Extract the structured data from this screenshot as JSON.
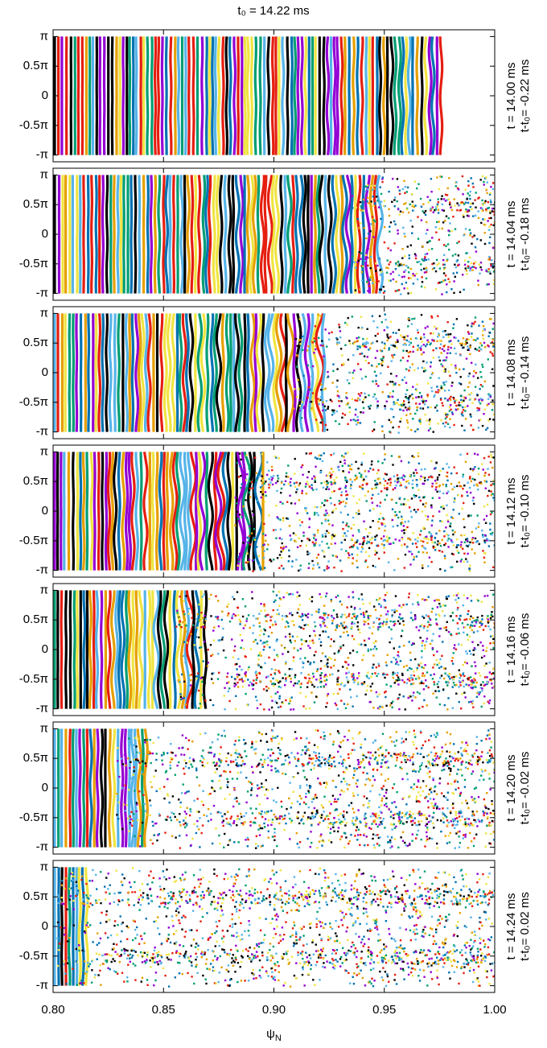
{
  "chart_data": [
    {
      "type": "scatter",
      "title": "t₀ = 14.22 ms",
      "time_label": "t   = 14.00 ms",
      "offset_label": "t-t₀= -0.22 ms",
      "xlim": [
        0.8,
        1.0
      ],
      "ylim": [
        -3.5,
        3.5
      ],
      "yticks": [
        {
          "value": 3.14159,
          "label": "π"
        },
        {
          "value": 1.5708,
          "label": "0.5π"
        },
        0,
        {
          "value": -1.5708,
          "label": "-0.5π"
        },
        {
          "value": -3.14159,
          "label": "-π"
        }
      ]
    },
    {
      "type": "scatter",
      "time_label": "t   = 14.04 ms",
      "offset_label": "t-t₀= -0.18 ms",
      "xlim": [
        0.8,
        1.0
      ],
      "ylim": [
        -3.5,
        3.5
      ],
      "yticks": [
        {
          "value": 3.14159,
          "label": "π"
        },
        {
          "value": 1.5708,
          "label": "0.5π"
        },
        0,
        {
          "value": -1.5708,
          "label": "-0.5π"
        },
        {
          "value": -3.14159,
          "label": "-π"
        }
      ]
    },
    {
      "type": "scatter",
      "time_label": "t   = 14.08 ms",
      "offset_label": "t-t₀= -0.14 ms",
      "xlim": [
        0.8,
        1.0
      ],
      "ylim": [
        -3.5,
        3.5
      ],
      "yticks": [
        {
          "value": 3.14159,
          "label": "π"
        },
        {
          "value": 1.5708,
          "label": "0.5π"
        },
        0,
        {
          "value": -1.5708,
          "label": "-0.5π"
        },
        {
          "value": -3.14159,
          "label": "-π"
        }
      ]
    },
    {
      "type": "scatter",
      "time_label": "t   = 14.12 ms",
      "offset_label": "t-t₀= -0.10 ms",
      "xlim": [
        0.8,
        1.0
      ],
      "ylim": [
        -3.5,
        3.5
      ],
      "yticks": [
        {
          "value": 3.14159,
          "label": "π"
        },
        {
          "value": 1.5708,
          "label": "0.5π"
        },
        0,
        {
          "value": -1.5708,
          "label": "-0.5π"
        },
        {
          "value": -3.14159,
          "label": "-π"
        }
      ]
    },
    {
      "type": "scatter",
      "time_label": "t   = 14.16 ms",
      "offset_label": "t-t₀= -0.06 ms",
      "xlim": [
        0.8,
        1.0
      ],
      "ylim": [
        -3.5,
        3.5
      ],
      "yticks": [
        {
          "value": 3.14159,
          "label": "π"
        },
        {
          "value": 1.5708,
          "label": "0.5π"
        },
        0,
        {
          "value": -1.5708,
          "label": "-0.5π"
        },
        {
          "value": -3.14159,
          "label": "-π"
        }
      ]
    },
    {
      "type": "scatter",
      "time_label": "t   = 14.20 ms",
      "offset_label": "t-t₀= -0.02 ms",
      "xlim": [
        0.8,
        1.0
      ],
      "ylim": [
        -3.5,
        3.5
      ],
      "yticks": [
        {
          "value": 3.14159,
          "label": "π"
        },
        {
          "value": 1.5708,
          "label": "0.5π"
        },
        0,
        {
          "value": -1.5708,
          "label": "-0.5π"
        },
        {
          "value": -3.14159,
          "label": "-π"
        }
      ]
    },
    {
      "type": "scatter",
      "time_label": "t   = 14.24 ms",
      "offset_label": "t-t₀= 0.02 ms",
      "xlim": [
        0.8,
        1.0
      ],
      "ylim": [
        -3.5,
        3.5
      ],
      "yticks": [
        {
          "value": 3.14159,
          "label": "π"
        },
        {
          "value": 1.5708,
          "label": "0.5π"
        },
        0,
        {
          "value": -1.5708,
          "label": "-0.5π"
        },
        {
          "value": -3.14159,
          "label": "-π"
        }
      ],
      "xticks": [
        {
          "value": 0.8,
          "label": "0.80"
        },
        {
          "value": 0.85,
          "label": "0.85"
        },
        {
          "value": 0.9,
          "label": "0.90"
        },
        {
          "value": 0.95,
          "label": "0.95"
        },
        {
          "value": 1.0,
          "label": "1.00"
        }
      ],
      "xlabel": "ψ",
      "xlabel_sub": "N"
    }
  ]
}
